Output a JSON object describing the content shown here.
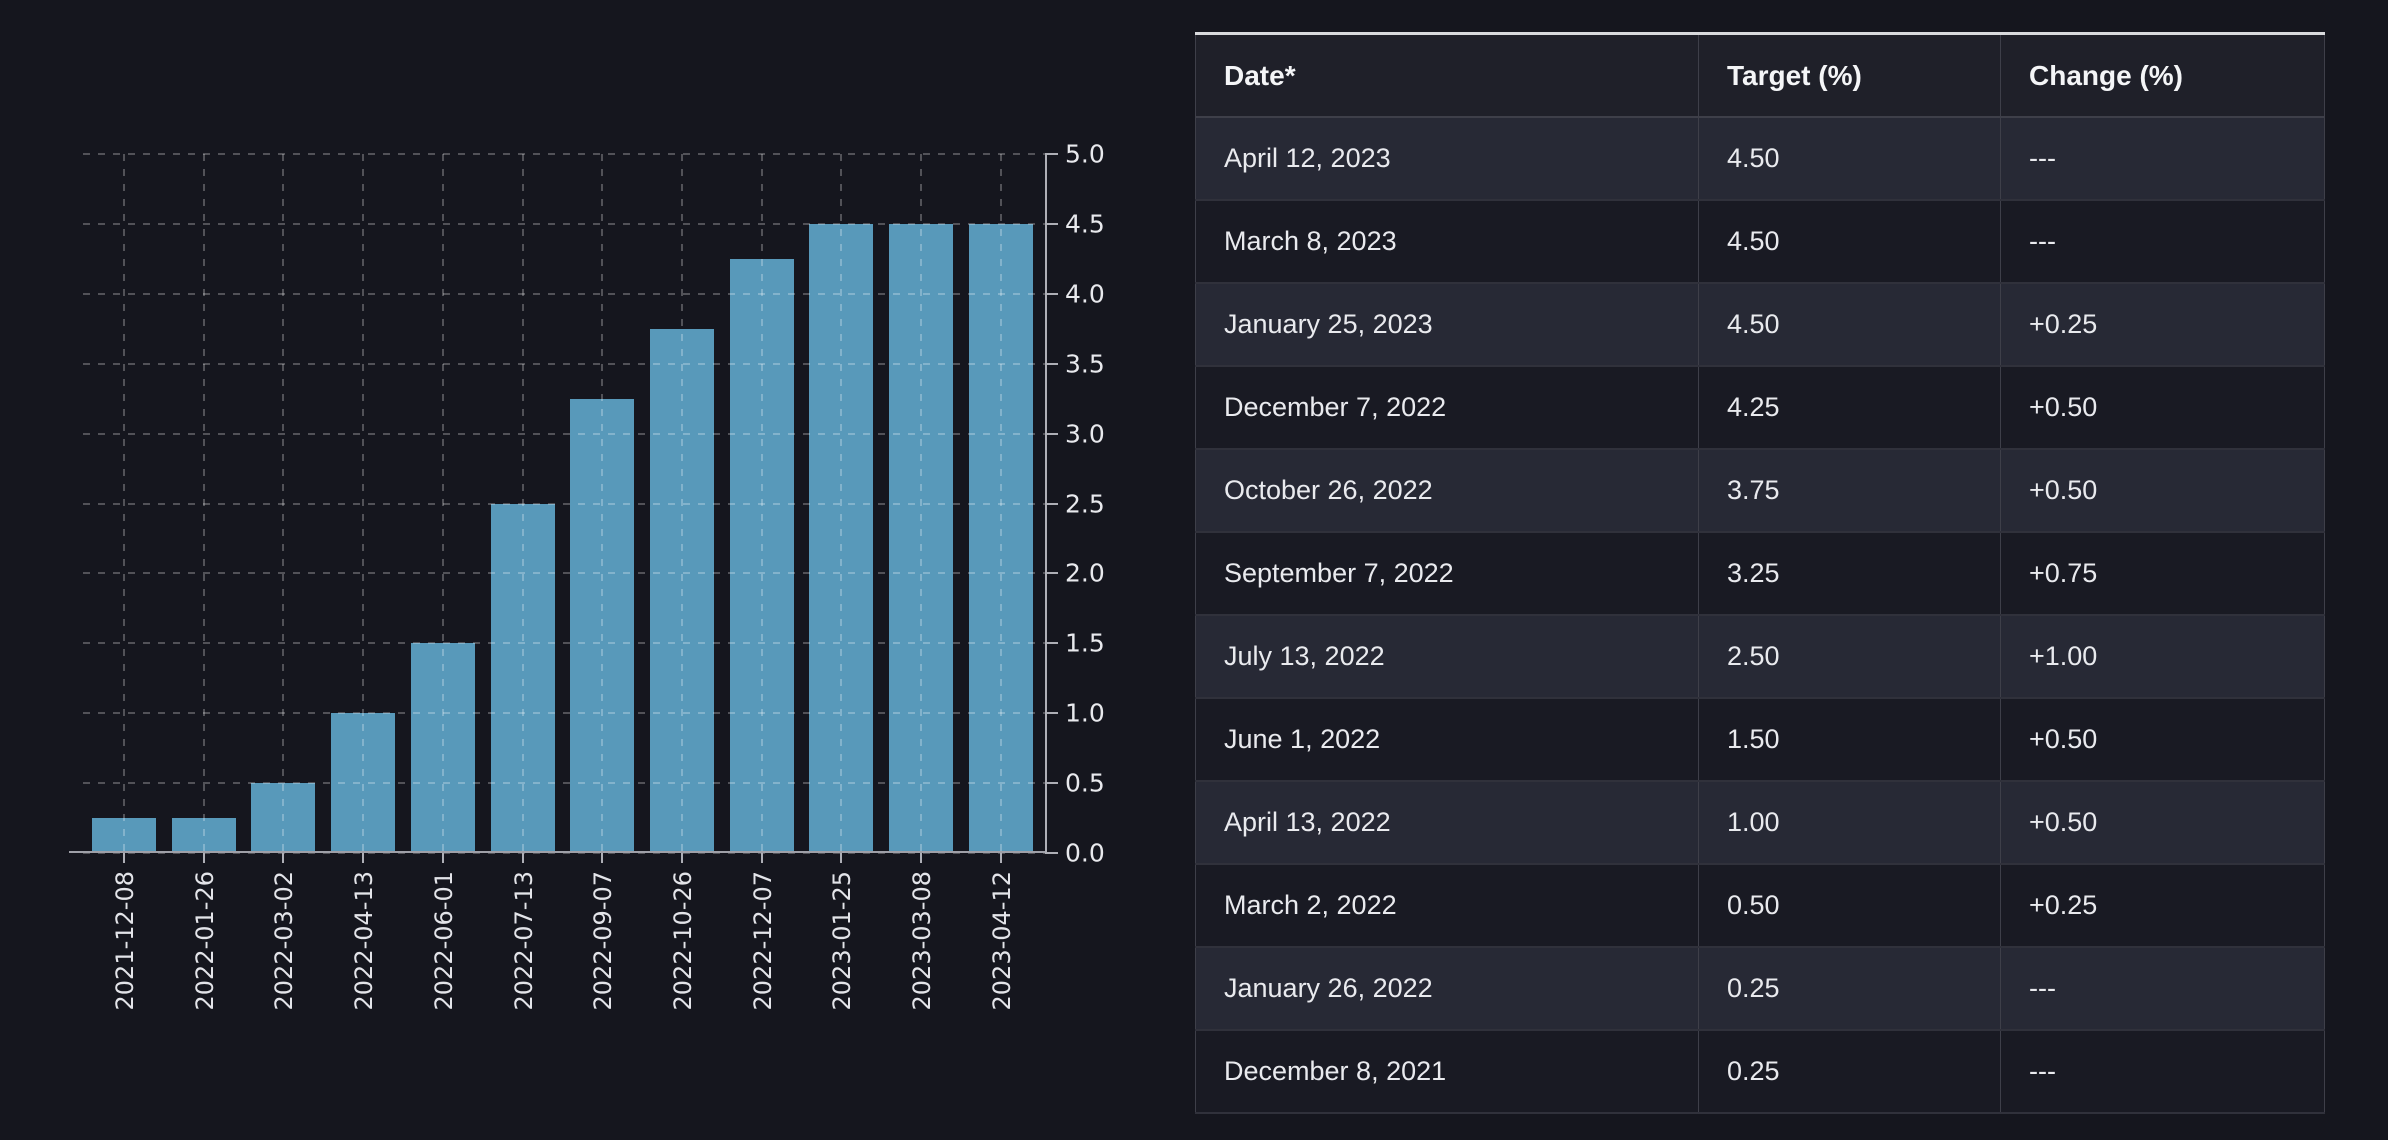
{
  "chart_data": {
    "type": "bar",
    "title": "",
    "xlabel": "",
    "ylabel": "",
    "categories": [
      "2021-12-08",
      "2022-01-26",
      "2022-03-02",
      "2022-04-13",
      "2022-06-01",
      "2022-07-13",
      "2022-09-07",
      "2022-10-26",
      "2022-12-07",
      "2023-01-25",
      "2023-03-08",
      "2023-04-12"
    ],
    "values": [
      0.25,
      0.25,
      0.5,
      1.0,
      1.5,
      2.5,
      3.25,
      3.75,
      4.25,
      4.5,
      4.5,
      4.5
    ],
    "ylim": [
      0.0,
      5.0
    ],
    "ytick_step": 0.5,
    "yaxis_side": "right",
    "grid": "dashed",
    "legend": "none",
    "bar_color": "#5899BA"
  },
  "table": {
    "columns": [
      "Date*",
      "Target (%)",
      "Change (%)"
    ],
    "rows": [
      {
        "date": "April 12, 2023",
        "target": "4.50",
        "change": "---"
      },
      {
        "date": "March 8, 2023",
        "target": "4.50",
        "change": "---"
      },
      {
        "date": "January 25, 2023",
        "target": "4.50",
        "change": "+0.25"
      },
      {
        "date": "December 7, 2022",
        "target": "4.25",
        "change": "+0.50"
      },
      {
        "date": "October 26, 2022",
        "target": "3.75",
        "change": "+0.50"
      },
      {
        "date": "September 7, 2022",
        "target": "3.25",
        "change": "+0.75"
      },
      {
        "date": "July 13, 2022",
        "target": "2.50",
        "change": "+1.00"
      },
      {
        "date": "June 1, 2022",
        "target": "1.50",
        "change": "+0.50"
      },
      {
        "date": "April 13, 2022",
        "target": "1.00",
        "change": "+0.50"
      },
      {
        "date": "March 2, 2022",
        "target": "0.50",
        "change": "+0.25"
      },
      {
        "date": "January 26, 2022",
        "target": "0.25",
        "change": "---"
      },
      {
        "date": "December 8, 2021",
        "target": "0.25",
        "change": "---"
      }
    ]
  },
  "colors": {
    "background": "#15161e",
    "bar": "#5899BA",
    "axis": "#aeafb6",
    "tick_label": "#e8e9ed",
    "row_odd": "#272935",
    "row_even": "#191a23",
    "header_bg": "#1f2029",
    "header_top_border": "#d9dadd"
  }
}
